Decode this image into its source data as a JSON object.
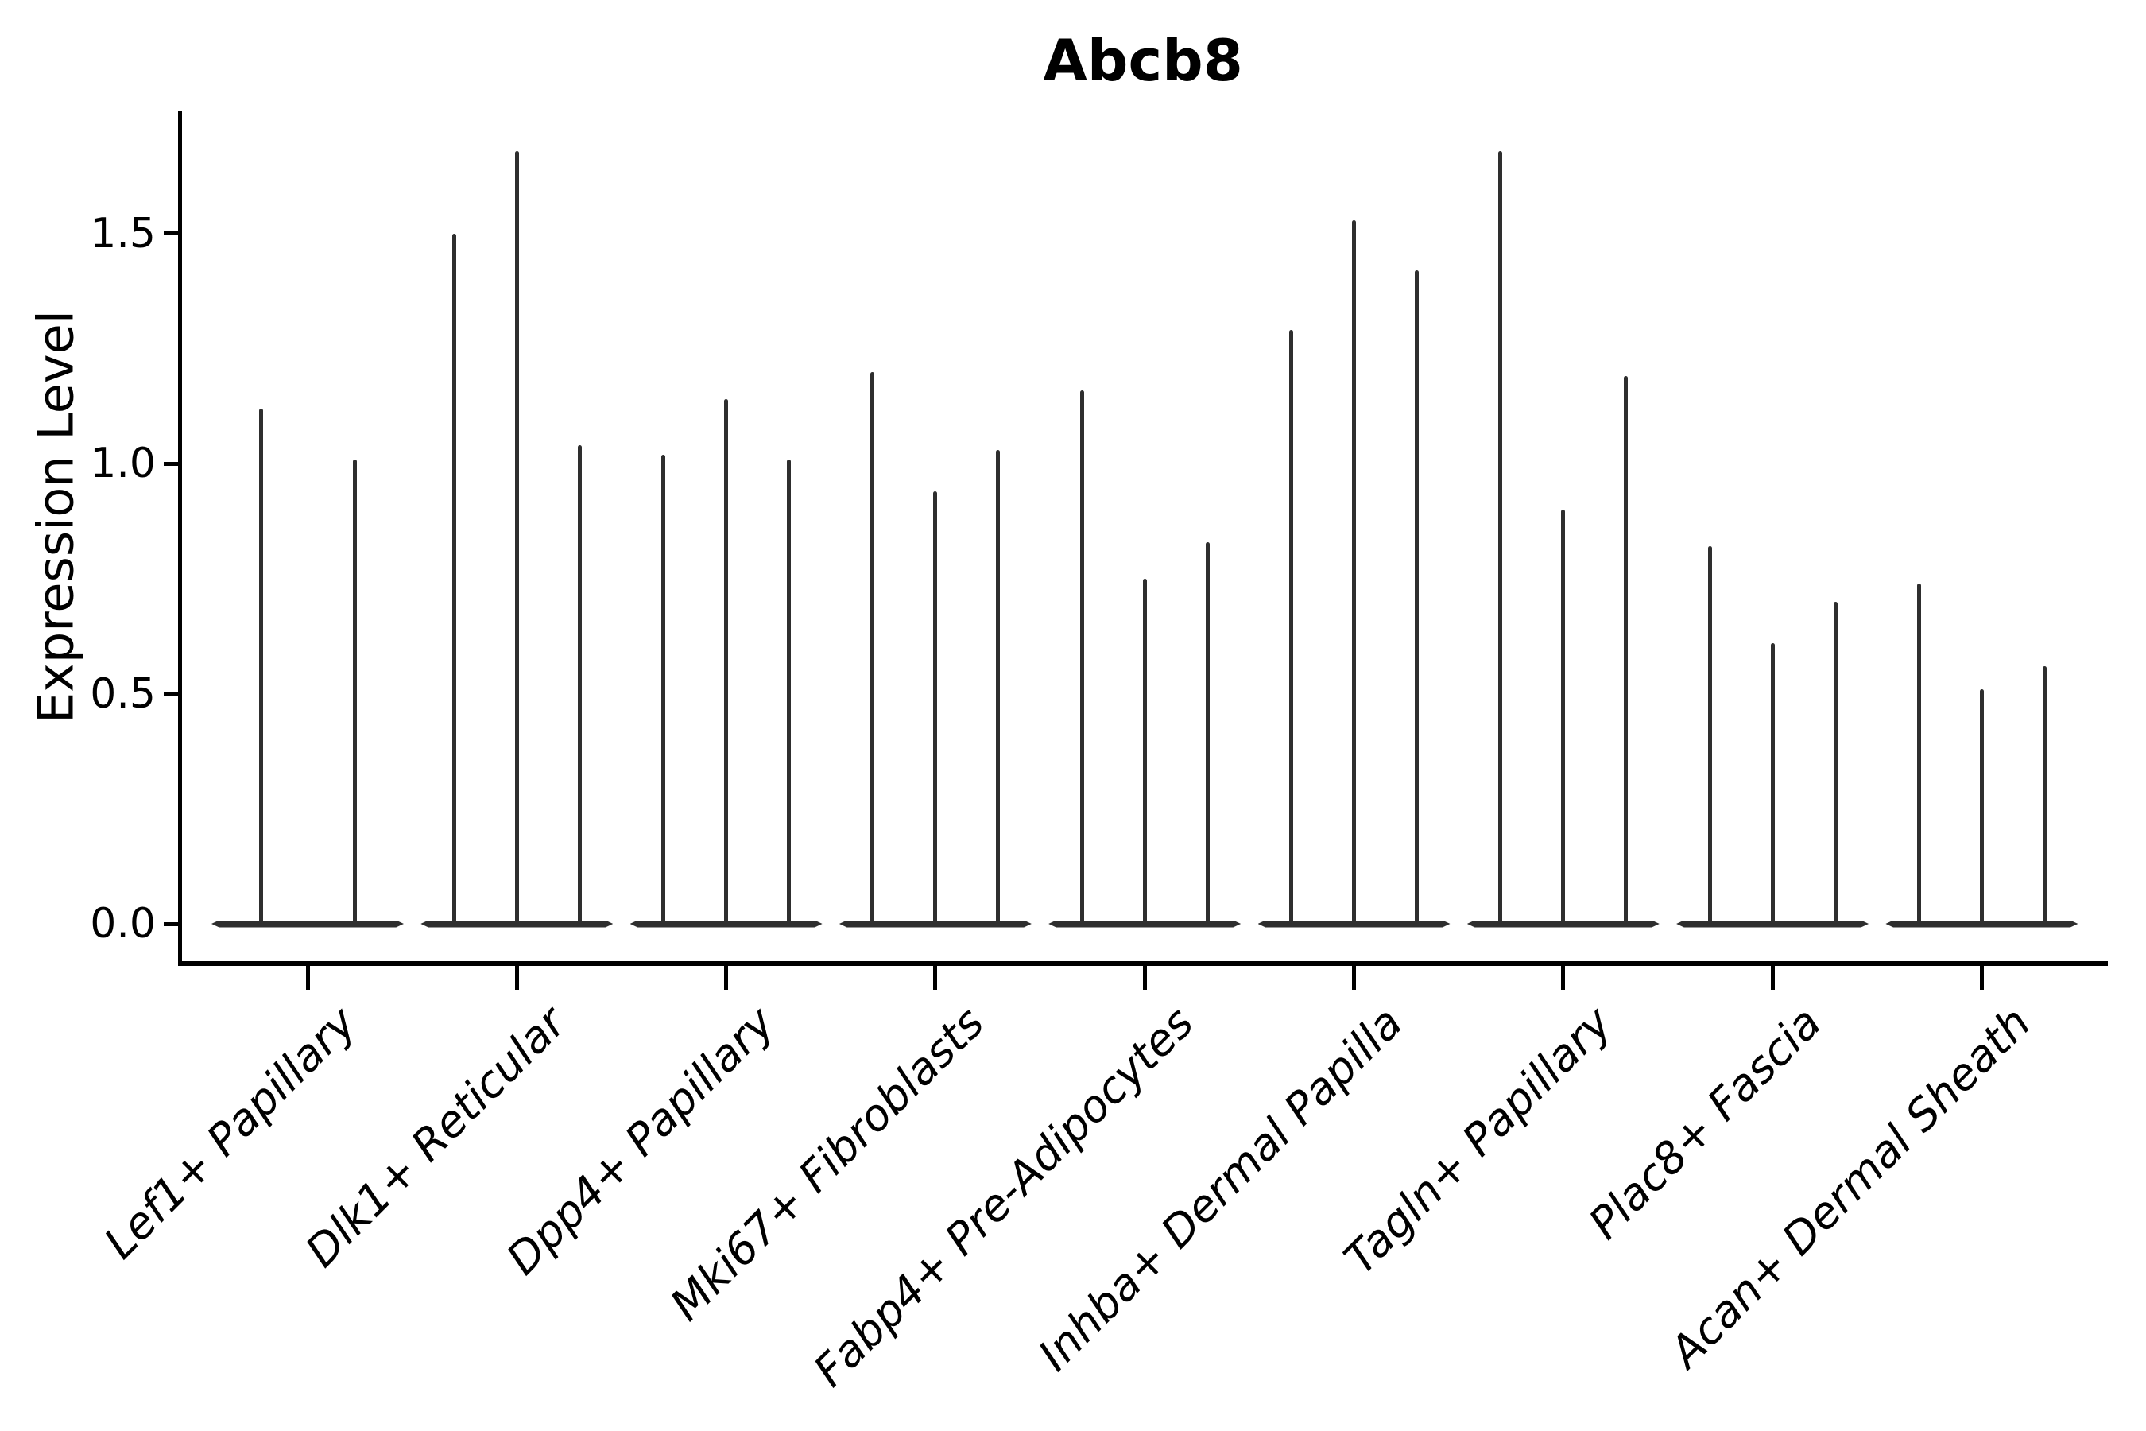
{
  "title": "Abcb8",
  "axes": {
    "ylabel": "Expression Level",
    "xlabel": ""
  },
  "chart_data": {
    "type": "violin",
    "title": "Abcb8",
    "xlabel": "",
    "ylabel": "Expression Level",
    "categories": [
      "Lef1+ Papillary",
      "Dlk1+ Reticular",
      "Dpp4+ Papillary",
      "Mki67+ Fibroblasts",
      "Fabp4+ Pre-Adipocytes",
      "Inhba+ Dermal Papilla",
      "Tagln+ Papillary",
      "Plac8+ Fascia",
      "Acan+ Dermal Sheath"
    ],
    "series_description": "Each category shows thin violins (all mass at 0 with a narrow spike up to the max expression value); max spike heights per violin listed per category",
    "violin_max_values": [
      [
        1.12,
        1.01
      ],
      [
        1.5,
        1.68,
        1.04
      ],
      [
        1.02,
        1.14,
        1.01
      ],
      [
        1.2,
        0.94,
        1.03
      ],
      [
        1.16,
        0.75,
        0.83
      ],
      [
        1.29,
        1.53,
        1.42
      ],
      [
        1.68,
        0.9,
        1.19
      ],
      [
        0.82,
        0.61,
        0.7
      ],
      [
        0.74,
        0.51,
        0.56
      ]
    ],
    "baseline_value": 0.0,
    "yticks": [
      0.0,
      0.5,
      1.0,
      1.5
    ],
    "ytick_labels": [
      "0.0",
      "0.5",
      "1.0",
      "1.5"
    ],
    "ylim": [
      -0.085,
      1.77
    ],
    "grid": false,
    "legend_position": "none",
    "colors": {
      "violin": "#2e2e2e",
      "axis": "#000000",
      "text": "#000000",
      "background": "#ffffff"
    }
  }
}
